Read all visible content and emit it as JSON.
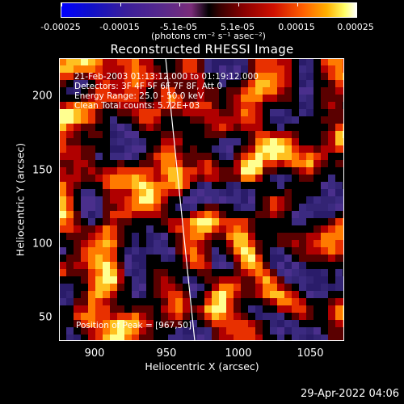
{
  "colorbar": {
    "ticks": [
      "-0.00025",
      "-0.00015",
      "-5.1e-05",
      "5.1e-05",
      "0.00015",
      "0.00025"
    ],
    "units": "(photons cm⁻² s⁻¹ asec⁻²)"
  },
  "plot": {
    "title": "Reconstructed RHESSI Image",
    "annotations": {
      "time": "21-Feb-2003 01:13:12.000 to 01:19:12.000",
      "detectors": "Detectors: 3F 4F 5F 6F 7F 8F, Att 0",
      "energy": "Energy Range: 25.0 - 50.0 keV",
      "clean": "Clean     Total counts: 5.72E+03",
      "peak": "Position of Peak = [967,50]"
    },
    "x_ticks": [
      "900",
      "950",
      "1000",
      "1050"
    ],
    "y_ticks": [
      "200",
      "150",
      "100",
      "50"
    ],
    "xlabel": "Heliocentric X (arcsec)",
    "ylabel": "Heliocentric Y (arcsec)"
  },
  "footer": {
    "timestamp": "29-Apr-2022 04:06"
  }
}
